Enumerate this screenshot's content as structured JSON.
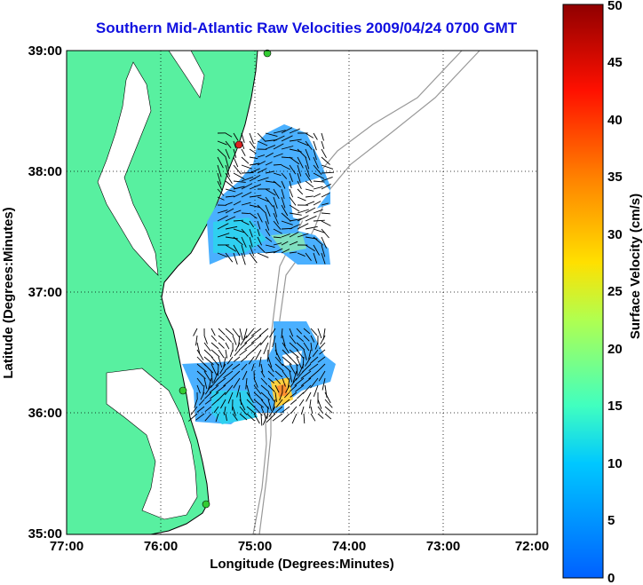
{
  "title": "Southern Mid-Atlantic Raw Velocities 2009/04/24 0700 GMT",
  "xlabel": "Longitude (Degrees:Minutes)",
  "ylabel": "Latitude (Degrees:Minutes)",
  "x_ticks": [
    "77:00",
    "76:00",
    "75:00",
    "74:00",
    "73:00",
    "72:00"
  ],
  "y_ticks": [
    "39:00",
    "38:00",
    "37:00",
    "36:00",
    "35:00"
  ],
  "colorbar": {
    "label": "Surface Velocity (cm/s)",
    "ticks": [
      "0",
      "5",
      "10",
      "15",
      "20",
      "25",
      "30",
      "35",
      "40",
      "45",
      "50"
    ],
    "range": [
      0,
      50
    ]
  },
  "colors": {
    "land": "#58f0a0",
    "water": "#ffffff",
    "title": "#1010e0",
    "bathymetry": "#999999"
  },
  "stations": [
    {
      "name": "station-north",
      "lon": -74.85,
      "lat": 39.0,
      "color": "#33cc33"
    },
    {
      "name": "station-delmarva",
      "lon": -75.15,
      "lat": 38.22,
      "color": "#dd2222"
    },
    {
      "name": "station-hatteras-north",
      "lon": -75.72,
      "lat": 36.17,
      "color": "#33cc33"
    },
    {
      "name": "station-hatteras-south",
      "lon": -75.47,
      "lat": 35.3,
      "color": "#33cc33"
    }
  ]
}
